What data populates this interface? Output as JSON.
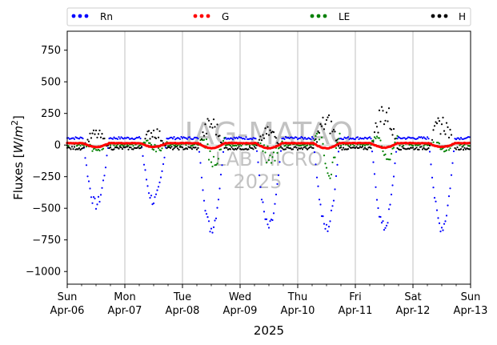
{
  "chart_data": {
    "type": "scatter",
    "title": "",
    "xlabel": "2025",
    "ylabel": "Fluxes [W/m²]",
    "ylabel_main": "Fluxes [",
    "ylabel_unit_w": "W",
    "ylabel_unit_slash": "/",
    "ylabel_unit_m": "m",
    "ylabel_unit_exp": "2",
    "ylabel_close": "]",
    "ylim": [
      -1100,
      900
    ],
    "yticks": [
      -1000,
      -750,
      -500,
      -250,
      0,
      250,
      500,
      750
    ],
    "ytick_labels": [
      "−1000",
      "−750",
      "−500",
      "−250",
      "0",
      "250",
      "500",
      "750"
    ],
    "xlim": [
      0,
      7
    ],
    "x_unit": "days from Sun Apr-06 00:00, 2025",
    "xticks": [
      {
        "pos": 0,
        "day": "Sun",
        "date": "Apr-06"
      },
      {
        "pos": 1,
        "day": "Mon",
        "date": "Apr-07"
      },
      {
        "pos": 2,
        "day": "Tue",
        "date": "Apr-08"
      },
      {
        "pos": 3,
        "day": "Wed",
        "date": "Apr-09"
      },
      {
        "pos": 4,
        "day": "Thu",
        "date": "Apr-10"
      },
      {
        "pos": 5,
        "day": "Fri",
        "date": "Apr-11"
      },
      {
        "pos": 6,
        "day": "Sat",
        "date": "Apr-12"
      },
      {
        "pos": 7,
        "day": "Sun",
        "date": "Apr-13"
      }
    ],
    "grid": "vertical major only",
    "legend_position": "top, above plot, 4 columns",
    "series": [
      {
        "name": "Rn",
        "color": "#0000ff",
        "night": 55,
        "day_min": [
          -470,
          -440,
          -660,
          -650,
          -660,
          -650,
          -650
        ]
      },
      {
        "name": "G",
        "color": "#ff0000",
        "night": 15,
        "day_min": [
          -15,
          -15,
          -25,
          -25,
          -25,
          -20,
          -15
        ]
      },
      {
        "name": "LE",
        "color": "#008000",
        "night": 5,
        "day_peak": [
          20,
          50,
          120,
          60,
          190,
          150,
          40
        ],
        "day_min": [
          -40,
          -20,
          -150,
          -130,
          -160,
          -50,
          -30
        ]
      },
      {
        "name": "H",
        "color": "#000000",
        "night": -25,
        "day_peak": [
          130,
          160,
          240,
          150,
          260,
          370,
          250
        ]
      }
    ],
    "watermark": {
      "line1": "IAG-MATAO",
      "line2": "LAB MICRO",
      "line3": "2025"
    }
  }
}
